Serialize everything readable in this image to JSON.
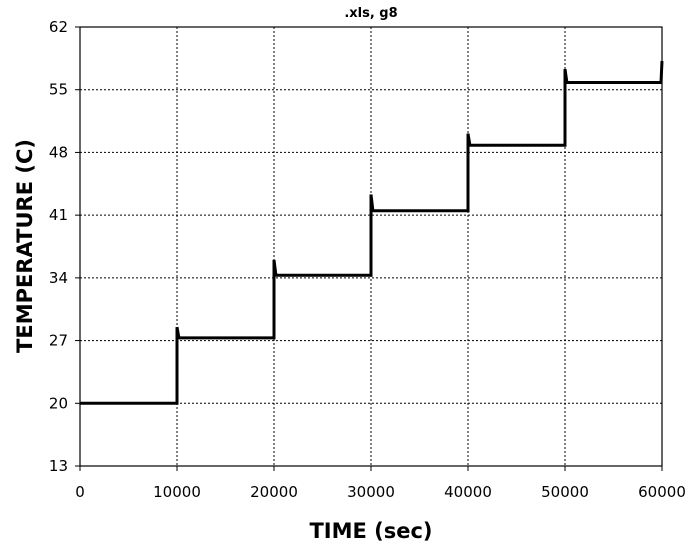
{
  "chart_data": {
    "type": "line",
    "title": ".xls, g8",
    "xlabel": "TIME (sec)",
    "ylabel": "TEMPERATURE (C)",
    "xlim": [
      0,
      60000
    ],
    "ylim": [
      13,
      62
    ],
    "xticks": [
      0,
      10000,
      20000,
      30000,
      40000,
      50000,
      60000
    ],
    "yticks": [
      13,
      20,
      27,
      34,
      41,
      48,
      55,
      62
    ],
    "grid": true,
    "legend": "none",
    "series": [
      {
        "color": "#000000",
        "points": [
          [
            0,
            20
          ],
          [
            10000,
            20
          ],
          [
            10000,
            28.5
          ],
          [
            10200,
            27.3
          ],
          [
            20000,
            27.3
          ],
          [
            20000,
            36
          ],
          [
            20200,
            34.3
          ],
          [
            30000,
            34.3
          ],
          [
            30000,
            43.3
          ],
          [
            30200,
            41.5
          ],
          [
            40000,
            41.5
          ],
          [
            40000,
            50.1
          ],
          [
            40200,
            48.8
          ],
          [
            50000,
            48.8
          ],
          [
            50000,
            57.3
          ],
          [
            50200,
            55.8
          ],
          [
            59900,
            55.8
          ],
          [
            60000,
            58.2
          ]
        ]
      }
    ]
  }
}
